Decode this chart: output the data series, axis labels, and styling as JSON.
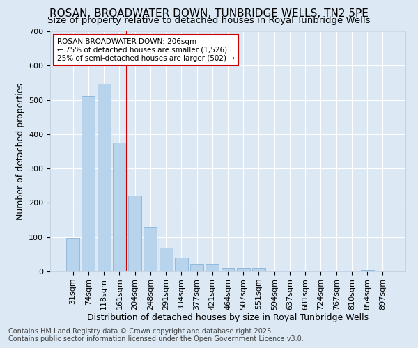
{
  "title": "ROSAN, BROADWATER DOWN, TUNBRIDGE WELLS, TN2 5PE",
  "subtitle": "Size of property relative to detached houses in Royal Tunbridge Wells",
  "xlabel": "Distribution of detached houses by size in Royal Tunbridge Wells",
  "ylabel": "Number of detached properties",
  "footer": "Contains HM Land Registry data © Crown copyright and database right 2025.\nContains public sector information licensed under the Open Government Licence v3.0.",
  "categories": [
    "31sqm",
    "74sqm",
    "118sqm",
    "161sqm",
    "204sqm",
    "248sqm",
    "291sqm",
    "334sqm",
    "377sqm",
    "421sqm",
    "464sqm",
    "507sqm",
    "551sqm",
    "594sqm",
    "637sqm",
    "681sqm",
    "724sqm",
    "767sqm",
    "810sqm",
    "854sqm",
    "897sqm"
  ],
  "values": [
    98,
    512,
    547,
    375,
    222,
    130,
    68,
    40,
    20,
    20,
    10,
    10,
    10,
    0,
    0,
    0,
    0,
    0,
    0,
    5,
    0
  ],
  "bar_color": "#b8d4ed",
  "bar_edge_color": "#8ab4d8",
  "red_line_after_index": 3,
  "highlight_color": "#cc0000",
  "annotation_title": "ROSAN BROADWATER DOWN: 206sqm",
  "annotation_line1": "← 75% of detached houses are smaller (1,526)",
  "annotation_line2": "25% of semi-detached houses are larger (502) →",
  "annotation_box_color": "#cc0000",
  "bg_color": "#dce9f5",
  "plot_bg_color": "#dce9f5",
  "ylim": [
    0,
    700
  ],
  "yticks": [
    0,
    100,
    200,
    300,
    400,
    500,
    600,
    700
  ],
  "grid_color": "#ffffff",
  "title_fontsize": 11,
  "subtitle_fontsize": 9.5,
  "xlabel_fontsize": 9,
  "ylabel_fontsize": 9,
  "tick_fontsize": 8,
  "footer_fontsize": 7
}
